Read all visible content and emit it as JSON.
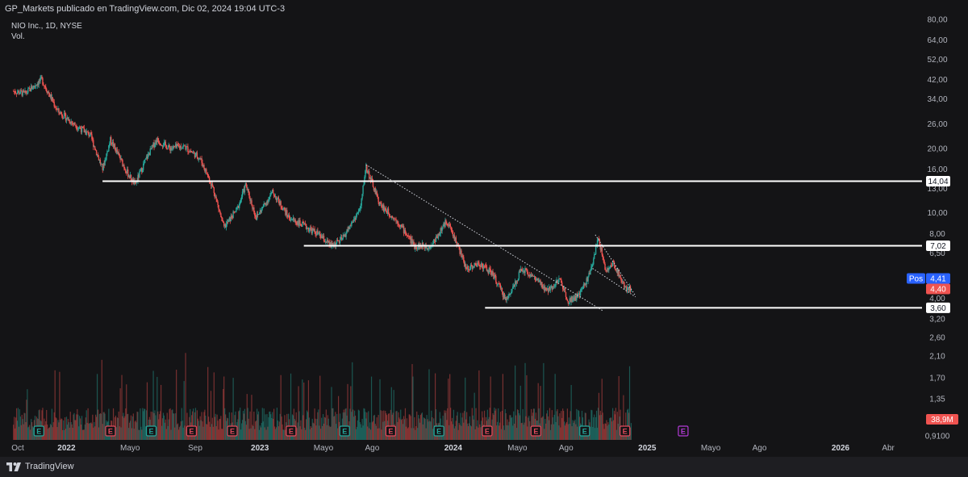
{
  "header": {
    "publish_line": "GP_Markets publicado en TradingView.com, Dic 02, 2024 19:04 UTC-3",
    "symbol_line": "NIO Inc., 1D, NYSE",
    "volume_label": "Vol."
  },
  "footer": {
    "brand": "TradingView"
  },
  "colors": {
    "background": "#141416",
    "up": "#26a69a",
    "down": "#ef5350",
    "level_line": "#ffffff",
    "trendline": "#d1d4dc",
    "earnings": "#e04a5c",
    "earnings_past": "#26a69a",
    "dividend_future": "#b23ad6"
  },
  "chart_data": {
    "type": "candlestick",
    "price_scale": "log",
    "ylim": [
      3.0,
      80.0
    ],
    "y_ticks": [
      "80,00",
      "64,00",
      "52,00",
      "42,00",
      "34,00",
      "26,00",
      "20,00",
      "16,00",
      "13,00",
      "10,00",
      "8,00",
      "6,50",
      "4,00",
      "3,20"
    ],
    "y_tick_values": [
      80,
      64,
      52,
      42,
      34,
      26,
      20,
      16,
      13,
      10,
      8,
      6.5,
      4,
      3.2
    ],
    "volume_ticks": [
      "2,60",
      "2,10",
      "1,70",
      "1,35",
      "0,9100"
    ],
    "x_ticks": [
      {
        "label": "Oct",
        "date": "2021-10-01",
        "bold": false
      },
      {
        "label": "2022",
        "date": "2022-01-01",
        "bold": true
      },
      {
        "label": "Mayo",
        "date": "2022-05-01",
        "bold": false
      },
      {
        "label": "Sep",
        "date": "2022-09-01",
        "bold": false
      },
      {
        "label": "2023",
        "date": "2023-01-01",
        "bold": true
      },
      {
        "label": "Mayo",
        "date": "2023-05-01",
        "bold": false
      },
      {
        "label": "Ago",
        "date": "2023-08-01",
        "bold": false
      },
      {
        "label": "2024",
        "date": "2024-01-01",
        "bold": true
      },
      {
        "label": "Mayo",
        "date": "2024-05-01",
        "bold": false
      },
      {
        "label": "Ago",
        "date": "2024-08-01",
        "bold": false
      },
      {
        "label": "2025",
        "date": "2025-01-01",
        "bold": true
      },
      {
        "label": "Mayo",
        "date": "2025-05-01",
        "bold": false
      },
      {
        "label": "Ago",
        "date": "2025-08-01",
        "bold": false
      },
      {
        "label": "2026",
        "date": "2026-01-01",
        "bold": true
      },
      {
        "label": "Abr",
        "date": "2026-04-01",
        "bold": false
      }
    ],
    "price_path": [
      [
        "2021-09-01",
        38
      ],
      [
        "2021-10-15",
        36
      ],
      [
        "2021-11-15",
        42
      ],
      [
        "2021-12-15",
        30
      ],
      [
        "2022-01-15",
        26
      ],
      [
        "2022-02-15",
        23
      ],
      [
        "2022-03-10",
        16
      ],
      [
        "2022-03-25",
        22
      ],
      [
        "2022-04-25",
        15.5
      ],
      [
        "2022-05-10",
        13.5
      ],
      [
        "2022-06-01",
        18
      ],
      [
        "2022-06-20",
        22
      ],
      [
        "2022-07-15",
        20
      ],
      [
        "2022-08-10",
        20.5
      ],
      [
        "2022-09-10",
        18
      ],
      [
        "2022-10-05",
        13
      ],
      [
        "2022-10-25",
        8.5
      ],
      [
        "2022-11-20",
        10.5
      ],
      [
        "2022-12-05",
        13.5
      ],
      [
        "2022-12-25",
        9.5
      ],
      [
        "2023-01-25",
        12.5
      ],
      [
        "2023-02-25",
        9.5
      ],
      [
        "2023-04-20",
        8
      ],
      [
        "2023-05-15",
        7
      ],
      [
        "2023-06-05",
        7.5
      ],
      [
        "2023-07-10",
        10.5
      ],
      [
        "2023-07-20",
        16.5
      ],
      [
        "2023-08-15",
        11
      ],
      [
        "2023-09-20",
        9
      ],
      [
        "2023-10-20",
        7
      ],
      [
        "2023-11-20",
        7
      ],
      [
        "2023-12-20",
        9.2
      ],
      [
        "2024-01-10",
        7
      ],
      [
        "2024-01-25",
        5.5
      ],
      [
        "2024-02-20",
        5.8
      ],
      [
        "2024-03-15",
        5.2
      ],
      [
        "2024-04-10",
        3.9
      ],
      [
        "2024-05-10",
        5.5
      ],
      [
        "2024-06-05",
        4.9
      ],
      [
        "2024-06-25",
        4.3
      ],
      [
        "2024-07-20",
        4.9
      ],
      [
        "2024-08-05",
        3.9
      ],
      [
        "2024-08-25",
        4.1
      ],
      [
        "2024-09-15",
        5.2
      ],
      [
        "2024-10-01",
        7.7
      ],
      [
        "2024-10-15",
        5.3
      ],
      [
        "2024-10-30",
        5.8
      ],
      [
        "2024-11-20",
        4.5
      ],
      [
        "2024-12-02",
        4.4
      ]
    ],
    "horizontal_levels": [
      {
        "value": 14.04,
        "label": "14,04",
        "from": "2022-03-10"
      },
      {
        "value": 7.02,
        "label": "7,02",
        "from": "2023-03-25"
      },
      {
        "value": 3.6,
        "label": "3,60",
        "from": "2024-03-01"
      }
    ],
    "trendlines": [
      {
        "from": [
          "2023-07-20",
          16.8
        ],
        "to": [
          "2024-10-10",
          3.48
        ]
      },
      {
        "from": [
          "2024-09-25",
          7.9
        ],
        "to": [
          "2024-12-10",
          4.1
        ]
      },
      {
        "from": [
          "2024-09-20",
          5.5
        ],
        "to": [
          "2024-12-10",
          4.05
        ]
      }
    ],
    "price_tags": [
      {
        "label": "4,41",
        "prefix": "Pos",
        "value": 4.41,
        "color": "#2962ff"
      },
      {
        "label": "4,40",
        "value": 4.4,
        "color": "#ef5350"
      }
    ],
    "volume_tag": {
      "label": "38,9M",
      "color": "#ef5350"
    },
    "events": [
      {
        "date": "2021-11-10",
        "label": "E",
        "kind": "past"
      },
      {
        "date": "2022-03-25",
        "label": "E",
        "kind": "earnings"
      },
      {
        "date": "2022-06-10",
        "label": "E",
        "kind": "past"
      },
      {
        "date": "2022-08-25",
        "label": "E",
        "kind": "earnings"
      },
      {
        "date": "2022-11-10",
        "label": "E",
        "kind": "earnings"
      },
      {
        "date": "2023-03-01",
        "label": "E",
        "kind": "earnings"
      },
      {
        "date": "2023-06-10",
        "label": "E",
        "kind": "past"
      },
      {
        "date": "2023-09-05",
        "label": "E",
        "kind": "earnings"
      },
      {
        "date": "2023-12-05",
        "label": "E",
        "kind": "past"
      },
      {
        "date": "2024-03-05",
        "label": "E",
        "kind": "earnings"
      },
      {
        "date": "2024-06-05",
        "label": "E",
        "kind": "earnings"
      },
      {
        "date": "2024-09-05",
        "label": "E",
        "kind": "past"
      },
      {
        "date": "2024-11-20",
        "label": "E",
        "kind": "earnings"
      },
      {
        "date": "2025-03-10",
        "label": "E",
        "kind": "future"
      }
    ]
  }
}
